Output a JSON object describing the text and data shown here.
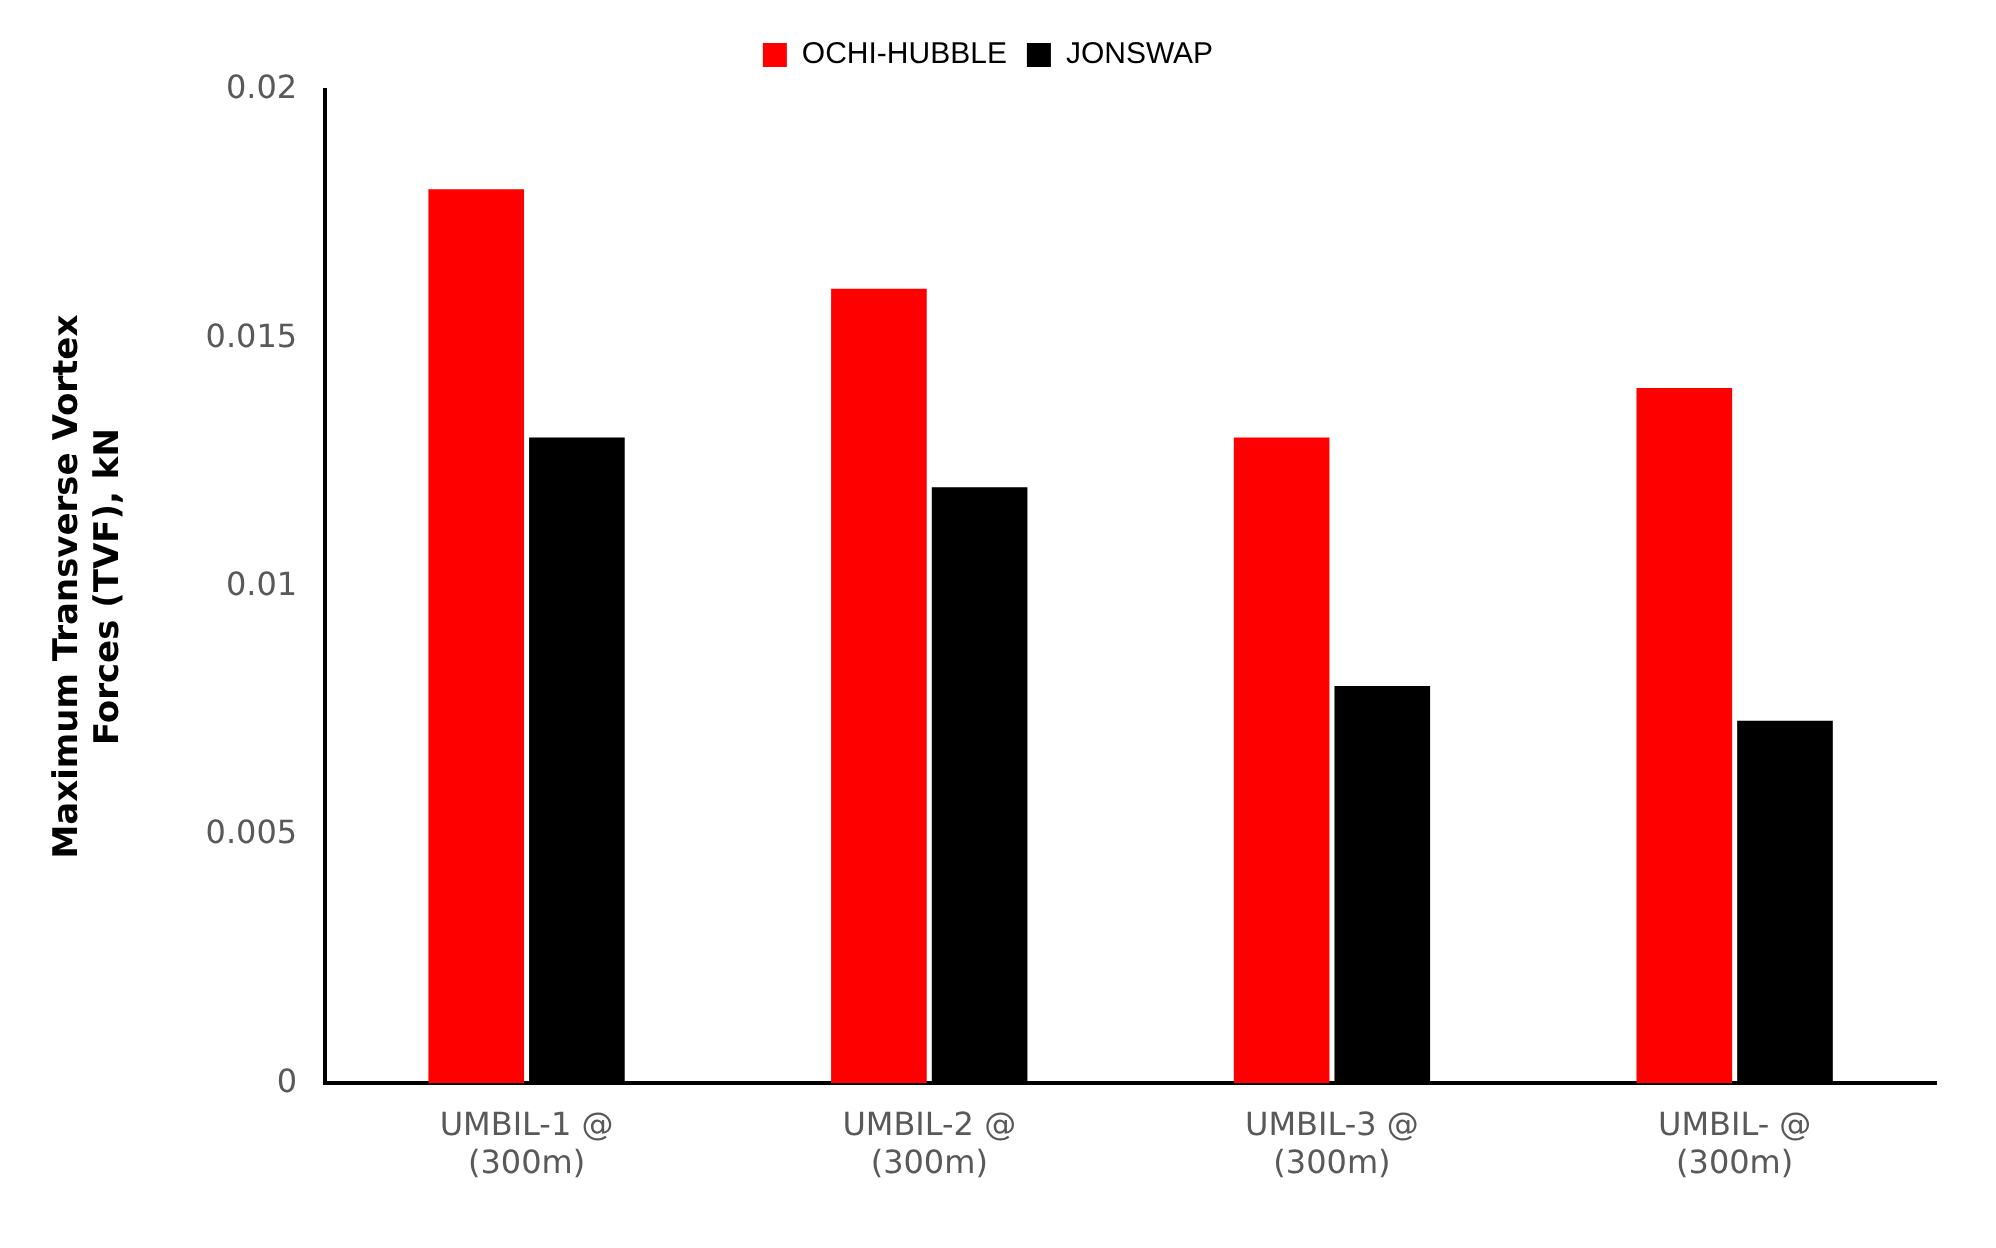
{
  "chart_data": {
    "type": "bar",
    "ylabel": "Maximum Transverse Vortex Forces (TVF), kN",
    "categories": [
      "UMBIL-1 @ (300m)",
      "UMBIL-2 @ (300m)",
      "UMBIL-3 @ (300m)",
      "UMBIL- @ (300m)"
    ],
    "series": [
      {
        "name": "OCHI-HUBBLE",
        "color": "#ff0000",
        "values": [
          0.018,
          0.016,
          0.013,
          0.014
        ]
      },
      {
        "name": "JONSWAP",
        "color": "#000000",
        "values": [
          0.013,
          0.012,
          0.008,
          0.0073
        ]
      }
    ],
    "ylim": [
      0,
      0.02
    ],
    "yticks": [
      0,
      0.005,
      0.01,
      0.015,
      0.02
    ],
    "grid": false,
    "legend": "top"
  }
}
